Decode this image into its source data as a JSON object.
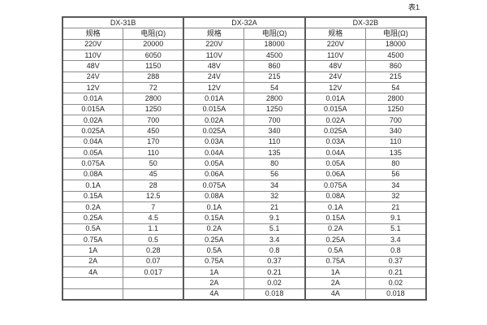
{
  "page": {
    "table_caption": "表1"
  },
  "table": {
    "groups": [
      {
        "name": "DX-31B"
      },
      {
        "name": "DX-32A"
      },
      {
        "name": "DX-32B"
      }
    ],
    "column_headers": {
      "spec": "规格",
      "resistance": "电阻(Ω)"
    },
    "rows": [
      [
        "220V",
        "20000",
        "220V",
        "18000",
        "220V",
        "18000"
      ],
      [
        "110V",
        "6050",
        "110V",
        "4500",
        "110V",
        "4500"
      ],
      [
        "48V",
        "1150",
        "48V",
        "860",
        "48V",
        "860"
      ],
      [
        "24V",
        "288",
        "24V",
        "215",
        "24V",
        "215"
      ],
      [
        "12V",
        "72",
        "12V",
        "54",
        "12V",
        "54"
      ],
      [
        "0.01A",
        "2800",
        "0.01A",
        "2800",
        "0.01A",
        "2800"
      ],
      [
        "0.015A",
        "1250",
        "0.015A",
        "1250",
        "0.015A",
        "1250"
      ],
      [
        "0.02A",
        "700",
        "0.02A",
        "700",
        "0.02A",
        "700"
      ],
      [
        "0.025A",
        "450",
        "0.025A",
        "340",
        "0.025A",
        "340"
      ],
      [
        "0.04A",
        "170",
        "0.03A",
        "110",
        "0.03A",
        "110"
      ],
      [
        "0.05A",
        "110",
        "0.04A",
        "135",
        "0.04A",
        "135"
      ],
      [
        "0.075A",
        "50",
        "0.05A",
        "80",
        "0.05A",
        "80"
      ],
      [
        "0.08A",
        "45",
        "0.06A",
        "56",
        "0.06A",
        "56"
      ],
      [
        "0.1A",
        "28",
        "0.075A",
        "34",
        "0.075A",
        "34"
      ],
      [
        "0.15A",
        "12.5",
        "0.08A",
        "32",
        "0.08A",
        "32"
      ],
      [
        "0.2A",
        "7",
        "0.1A",
        "21",
        "0.1A",
        "21"
      ],
      [
        "0.25A",
        "4.5",
        "0.15A",
        "9.1",
        "0.15A",
        "9.1"
      ],
      [
        "0.5A",
        "1.1",
        "0.2A",
        "5.1",
        "0.2A",
        "5.1"
      ],
      [
        "0.75A",
        "0.5",
        "0.25A",
        "3.4",
        "0.25A",
        "3.4"
      ],
      [
        "1A",
        "0.28",
        "0.5A",
        "0.8",
        "0.5A",
        "0.8"
      ],
      [
        "2A",
        "0.07",
        "0.75A",
        "0.37",
        "0.75A",
        "0.37"
      ],
      [
        "4A",
        "0.017",
        "1A",
        "0.21",
        "1A",
        "0.21"
      ],
      [
        "",
        "",
        "2A",
        "0.02",
        "2A",
        "0.02"
      ],
      [
        "",
        "",
        "4A",
        "0.018",
        "4A",
        "0.018"
      ]
    ],
    "colors": {
      "outer_border": "#5a5a5a",
      "inner_border": "#8c8c8c",
      "text": "#262626",
      "background": "#ffffff"
    }
  }
}
